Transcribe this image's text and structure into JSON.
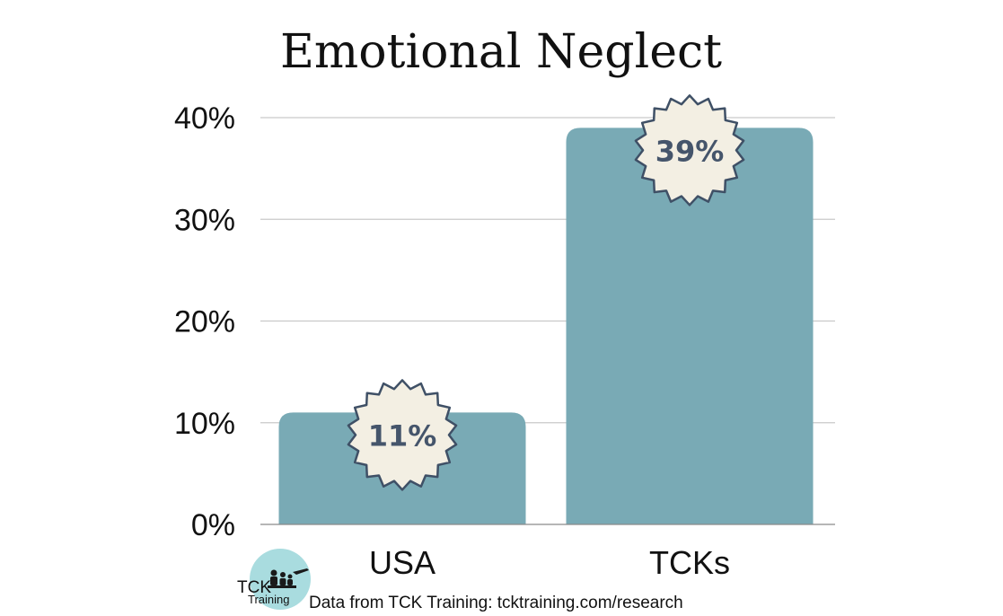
{
  "chart_data": {
    "type": "bar",
    "title": "Emotional Neglect",
    "categories": [
      "USA",
      "TCKs"
    ],
    "values": [
      11,
      39
    ],
    "value_labels": [
      "11%",
      "39%"
    ],
    "xlabel": "",
    "ylabel": "",
    "ylim": [
      0,
      40
    ],
    "yticks": [
      0,
      10,
      20,
      30,
      40
    ],
    "ytick_labels": [
      "0%",
      "10%",
      "20%",
      "30%",
      "40%"
    ],
    "grid": true,
    "legend": "none"
  },
  "source": "Data from TCK Training: tcktraining.com/research",
  "logo": {
    "line1": "TCK",
    "line2": "Training"
  },
  "colors": {
    "bar": "#79aab5",
    "grid": "#c9c9c9",
    "badge_fill": "#f3efe3",
    "badge_stroke": "#3f5066",
    "badge_text": "#45556b",
    "logo_bg": "#a9dcdf"
  }
}
